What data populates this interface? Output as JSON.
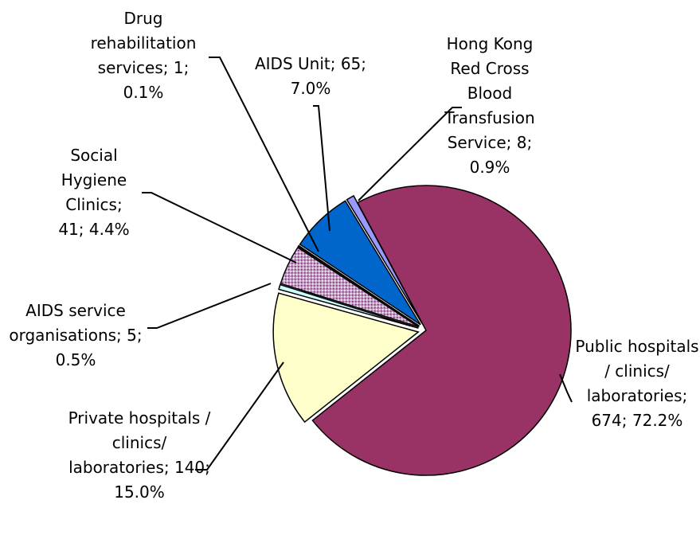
{
  "chart_data": {
    "type": "pie",
    "categories": [
      "Public hospitals / clinics/ laboratories",
      "Private hospitals / clinics/ laboratories",
      "AIDS service organisations",
      "Social Hygiene Clinics",
      "Drug rehabilitation services",
      "AIDS Unit",
      "Hong Kong Red Cross Blood Transfusion Service"
    ],
    "values": [
      674,
      140,
      5,
      41,
      1,
      65,
      8
    ],
    "shares": [
      72.2,
      15.0,
      0.5,
      4.4,
      0.1,
      7.0,
      0.9
    ],
    "share_labels": [
      "72.2%",
      "15.0%",
      "0.5%",
      "4.4%",
      "0.1%",
      "7.0%",
      "0.9%"
    ],
    "label_separator": "; ",
    "colors": [
      "#993366",
      "#ffffcc",
      "#ccffff",
      "#cc99cc",
      "#ffffff",
      "#0066cc",
      "#9999ff"
    ]
  }
}
